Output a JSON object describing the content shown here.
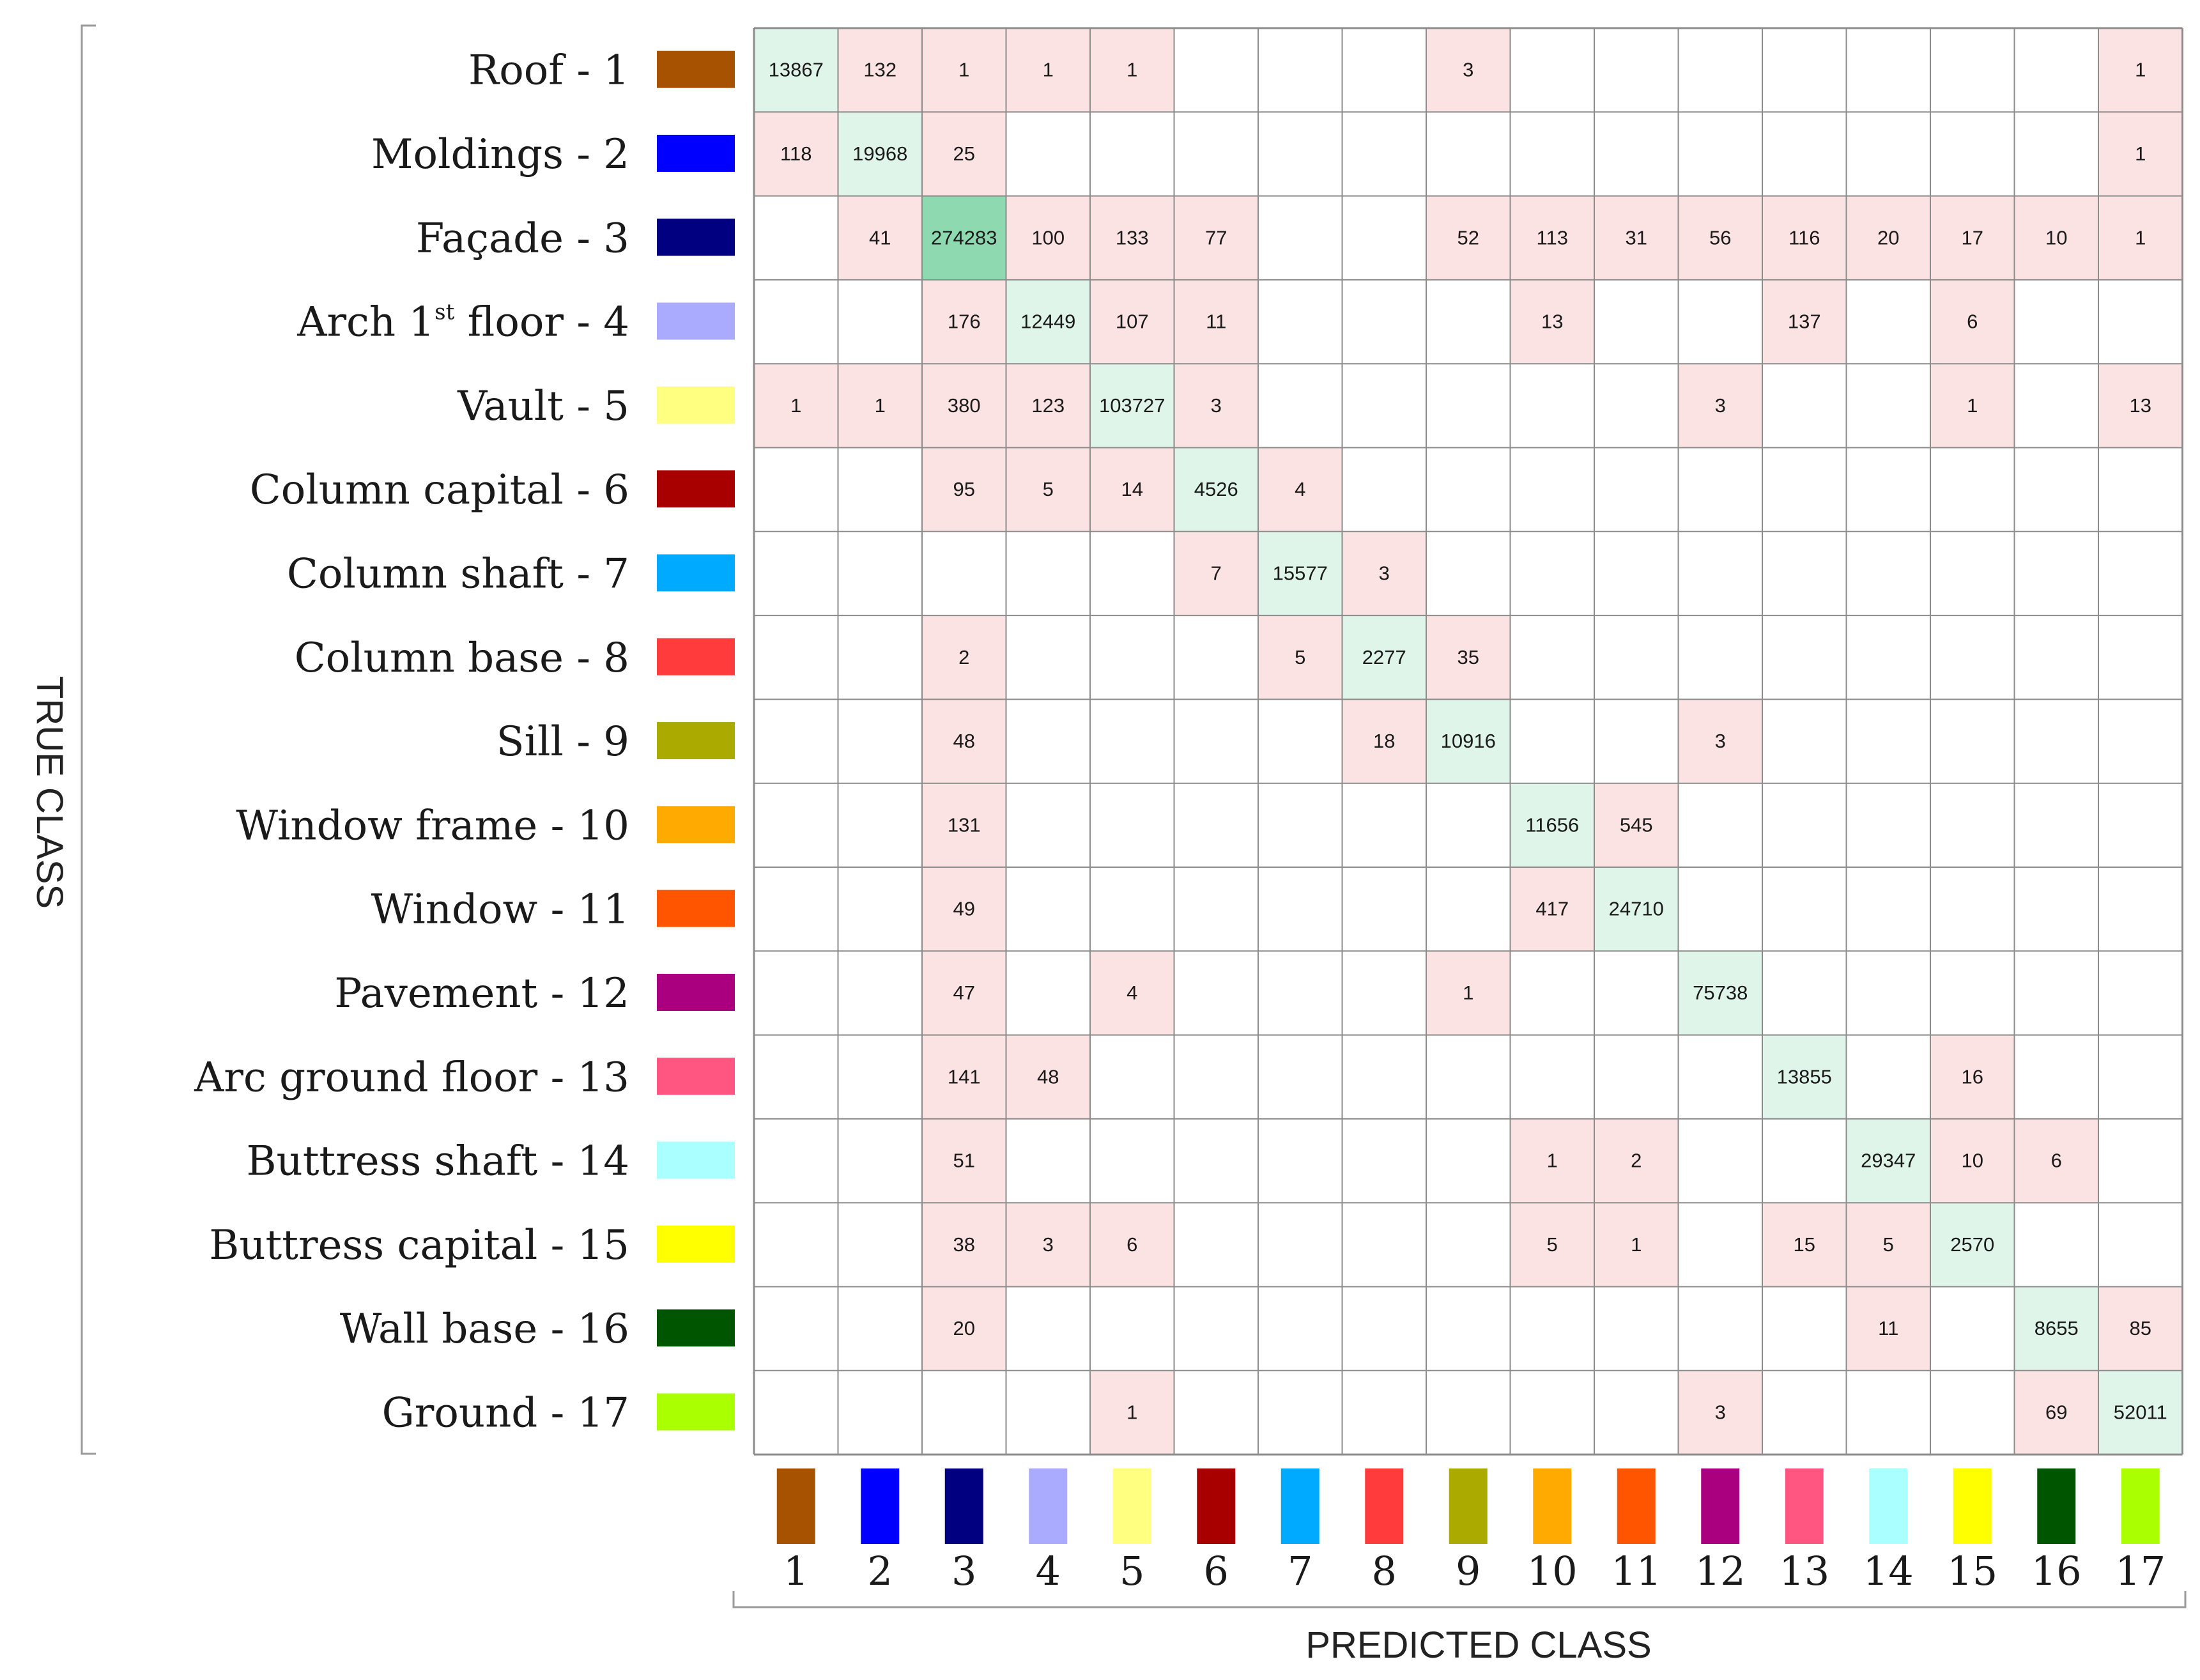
{
  "chart_data": {
    "type": "heatmap",
    "title": "",
    "xlabel": "PREDICTED CLASS",
    "ylabel": "TRUE CLASS",
    "classes": [
      {
        "id": "1",
        "name": "Roof - 1",
        "color": "#A65200"
      },
      {
        "id": "2",
        "name": "Moldings - 2",
        "color": "#0000FF"
      },
      {
        "id": "3",
        "name": "Façade - 3",
        "color": "#000080"
      },
      {
        "id": "4",
        "name": "Arch  1st floor - 4",
        "name_prefix": "Arch  1",
        "name_sup": "st",
        "name_suffix": " floor - 4",
        "color": "#AAAAFF"
      },
      {
        "id": "5",
        "name": "Vault - 5",
        "color": "#FFFF80"
      },
      {
        "id": "6",
        "name": "Column capital - 6",
        "color": "#A80000"
      },
      {
        "id": "7",
        "name": "Column shaft - 7",
        "color": "#00AAFF"
      },
      {
        "id": "8",
        "name": "Column base - 8",
        "color": "#FF3B3B"
      },
      {
        "id": "9",
        "name": "Sill - 9",
        "color": "#AAAA00"
      },
      {
        "id": "10",
        "name": "Window frame - 10",
        "color": "#FFAA00"
      },
      {
        "id": "11",
        "name": "Window - 11",
        "color": "#FF5500"
      },
      {
        "id": "12",
        "name": "Pavement - 12",
        "color": "#AA0080"
      },
      {
        "id": "13",
        "name": "Arc ground floor - 13",
        "color": "#FF5580"
      },
      {
        "id": "14",
        "name": "Buttress shaft - 14",
        "color": "#AAFFFF"
      },
      {
        "id": "15",
        "name": "Buttress capital - 15",
        "color": "#FFFF00"
      },
      {
        "id": "16",
        "name": "Wall base - 16",
        "color": "#005500"
      },
      {
        "id": "17",
        "name": "Ground - 17",
        "color": "#AAFF00"
      }
    ],
    "matrix": [
      [
        13867,
        132,
        1,
        1,
        1,
        null,
        null,
        null,
        3,
        null,
        null,
        null,
        null,
        null,
        null,
        null,
        1
      ],
      [
        118,
        19968,
        25,
        null,
        null,
        null,
        null,
        null,
        null,
        null,
        null,
        null,
        null,
        null,
        null,
        null,
        1
      ],
      [
        null,
        41,
        274283,
        100,
        133,
        77,
        null,
        null,
        52,
        113,
        31,
        56,
        116,
        20,
        17,
        10,
        1
      ],
      [
        null,
        null,
        176,
        12449,
        107,
        11,
        null,
        null,
        null,
        13,
        null,
        null,
        137,
        null,
        6,
        null,
        null
      ],
      [
        1,
        1,
        380,
        123,
        103727,
        3,
        null,
        null,
        null,
        null,
        null,
        3,
        null,
        null,
        1,
        null,
        13
      ],
      [
        null,
        null,
        95,
        5,
        14,
        4526,
        4,
        null,
        null,
        null,
        null,
        null,
        null,
        null,
        null,
        null,
        null
      ],
      [
        null,
        null,
        null,
        null,
        null,
        7,
        15577,
        3,
        null,
        null,
        null,
        null,
        null,
        null,
        null,
        null,
        null
      ],
      [
        null,
        null,
        2,
        null,
        null,
        null,
        5,
        2277,
        35,
        null,
        null,
        null,
        null,
        null,
        null,
        null,
        null
      ],
      [
        null,
        null,
        48,
        null,
        null,
        null,
        null,
        18,
        10916,
        null,
        null,
        3,
        null,
        null,
        null,
        null,
        null
      ],
      [
        null,
        null,
        131,
        null,
        null,
        null,
        null,
        null,
        null,
        11656,
        545,
        null,
        null,
        null,
        null,
        null,
        null
      ],
      [
        null,
        null,
        49,
        null,
        null,
        null,
        null,
        null,
        null,
        417,
        24710,
        null,
        null,
        null,
        null,
        null,
        null
      ],
      [
        null,
        null,
        47,
        null,
        4,
        null,
        null,
        null,
        1,
        null,
        null,
        75738,
        null,
        null,
        null,
        null,
        null
      ],
      [
        null,
        null,
        141,
        48,
        null,
        null,
        null,
        null,
        null,
        null,
        null,
        null,
        13855,
        null,
        16,
        null,
        null
      ],
      [
        null,
        null,
        51,
        null,
        null,
        null,
        null,
        null,
        null,
        1,
        2,
        null,
        null,
        29347,
        10,
        6,
        null
      ],
      [
        null,
        null,
        38,
        3,
        6,
        null,
        null,
        null,
        null,
        5,
        1,
        null,
        15,
        5,
        2570,
        null,
        null
      ],
      [
        null,
        null,
        20,
        null,
        null,
        null,
        null,
        null,
        null,
        null,
        null,
        null,
        null,
        11,
        null,
        8655,
        85
      ],
      [
        null,
        null,
        null,
        null,
        1,
        null,
        null,
        null,
        null,
        null,
        null,
        3,
        null,
        null,
        null,
        69,
        52011
      ]
    ],
    "cell_colors": {
      "diagonal": "#DFF5E9",
      "diagonal_strong": "#8FD9B0",
      "off_diagonal": "#FCE3E3",
      "empty": "#FFFFFF",
      "grid": "#8C8C8C"
    },
    "legend": "class color swatches beside row labels and below columns"
  }
}
